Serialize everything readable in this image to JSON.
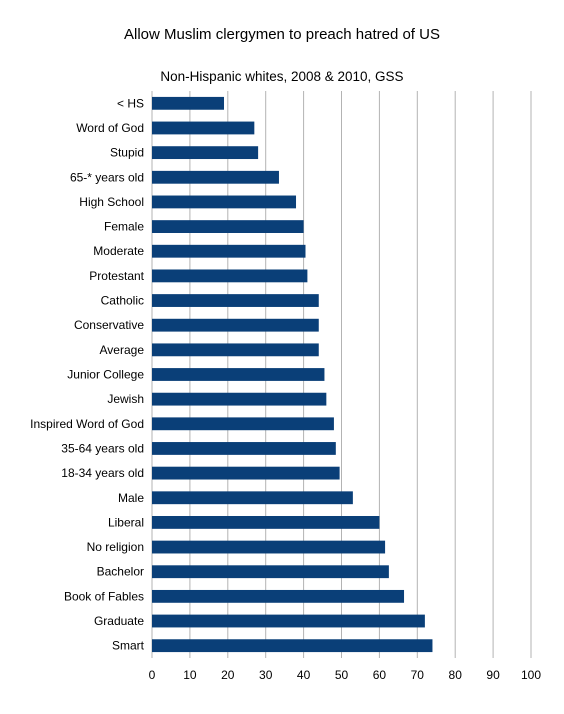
{
  "chart_data": {
    "type": "bar",
    "orientation": "horizontal",
    "title": "Allow Muslim clergymen to preach hatred of US",
    "subtitle": "Non-Hispanic whites, 2008 & 2010, GSS",
    "xlabel": "",
    "ylabel": "",
    "xlim": [
      0,
      100
    ],
    "x_ticks": [
      "0",
      "10",
      "20",
      "30",
      "40",
      "50",
      "60",
      "70",
      "80",
      "90",
      "100"
    ],
    "grid": true,
    "legend": "none",
    "bar_color": "#0a3f78",
    "grid_color": "#b3b3b3",
    "categories": [
      "< HS",
      "Word of God",
      "Stupid",
      "65-* years old",
      "High School",
      "Female",
      "Moderate",
      "Protestant",
      "Catholic",
      "Conservative",
      "Average",
      "Junior College",
      "Jewish",
      "Inspired Word of God",
      "35-64 years old",
      "18-34 years old",
      "Male",
      "Liberal",
      "No religion",
      "Bachelor",
      "Book of Fables",
      "Graduate",
      "Smart"
    ],
    "values": [
      19,
      27,
      28,
      33.5,
      38,
      40,
      40.5,
      41,
      44,
      44,
      44,
      45.5,
      46,
      48,
      48.5,
      49.5,
      53,
      60,
      61.5,
      62.5,
      66.5,
      72,
      74
    ]
  }
}
